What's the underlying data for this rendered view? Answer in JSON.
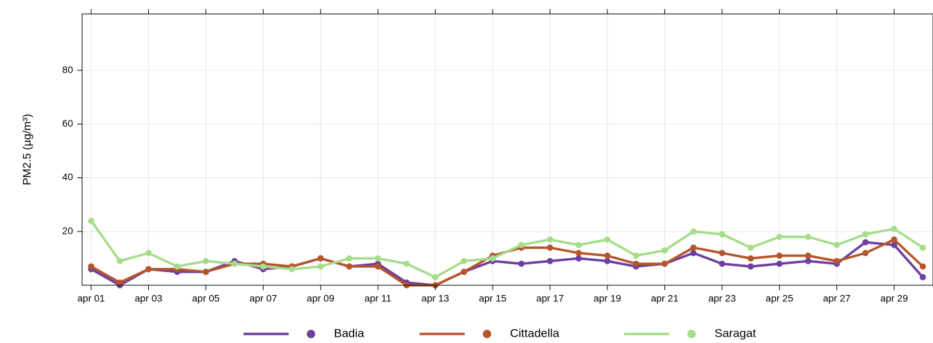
{
  "chart_data": {
    "type": "line",
    "y_label": "PM2.5 (µg/m³)",
    "categories": [
      "apr 01",
      null,
      "apr 03",
      null,
      "apr 05",
      null,
      "apr 07",
      null,
      "apr 09",
      null,
      "apr 11",
      null,
      "apr 13",
      null,
      "apr 15",
      null,
      "apr 17",
      null,
      "apr 19",
      null,
      "apr 21",
      null,
      "apr 23",
      null,
      "apr 25",
      null,
      "apr 27",
      null,
      "apr 29",
      null
    ],
    "series": [
      {
        "name": "Badia",
        "color": "#6f3fa0",
        "values": [
          6,
          0,
          6,
          5,
          5,
          9,
          6,
          7,
          10,
          7,
          8,
          1,
          0,
          5,
          9,
          8,
          9,
          10,
          9,
          7,
          8,
          12,
          8,
          7,
          8,
          9,
          8,
          16,
          15,
          3
        ]
      },
      {
        "name": "Cittadella",
        "color": "#b5562a",
        "values": [
          7,
          1,
          6,
          6,
          5,
          8,
          8,
          7,
          10,
          7,
          7,
          0,
          0,
          5,
          11,
          14,
          14,
          12,
          11,
          8,
          8,
          14,
          12,
          10,
          11,
          11,
          9,
          12,
          17,
          7
        ]
      },
      {
        "name": "Saragat",
        "color": "#a6dd8a",
        "values": [
          24,
          9,
          12,
          7,
          9,
          8,
          7,
          6,
          7,
          10,
          10,
          8,
          3,
          9,
          10,
          15,
          17,
          15,
          17,
          11,
          13,
          20,
          19,
          14,
          18,
          18,
          15,
          19,
          21,
          14
        ]
      }
    ],
    "ylim": [
      0,
      101
    ],
    "yticks": [
      20,
      40,
      60,
      80
    ],
    "grid": true,
    "legend": "bottom"
  }
}
